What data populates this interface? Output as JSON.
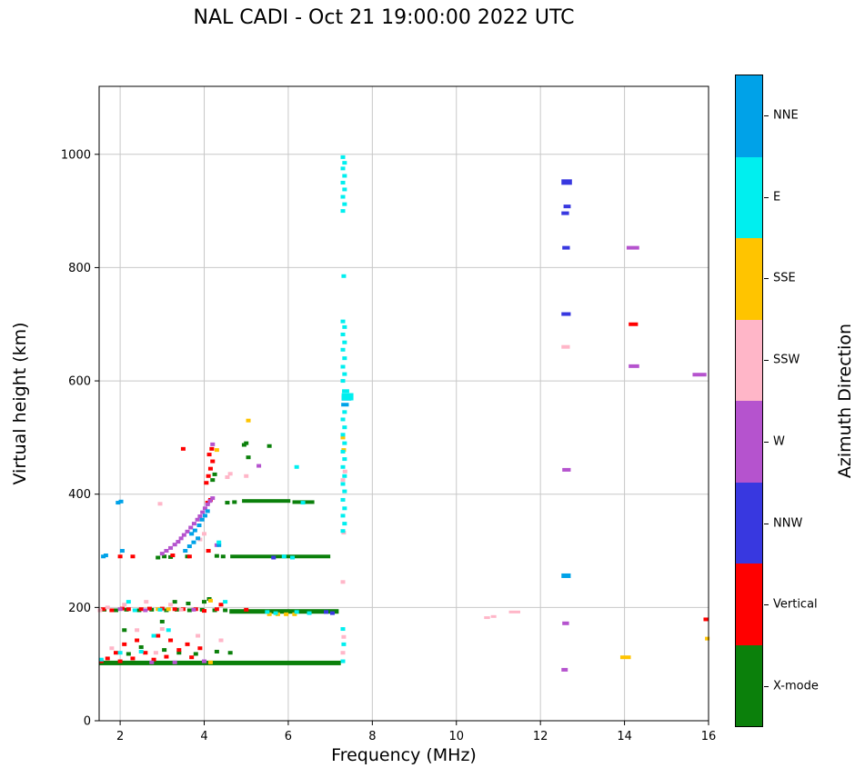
{
  "chart_data": {
    "type": "scatter",
    "title": "NAL CADI - Oct 21 19:00:00 2022 UTC",
    "xlabel": "Frequency (MHz)",
    "ylabel": "Virtual height (km)",
    "xlim": [
      1.5,
      16
    ],
    "ylim": [
      0,
      1120
    ],
    "xticks": [
      2,
      4,
      6,
      8,
      10,
      12,
      14,
      16
    ],
    "yticks": [
      0,
      200,
      400,
      600,
      800,
      1000
    ],
    "grid": true,
    "grid_color": "#c8c8c8",
    "legend": {
      "title": "Azimuth Direction",
      "position": "right-colorbar",
      "entries": [
        {
          "label": "NNE",
          "color": "#00A2E8"
        },
        {
          "label": "E",
          "color": "#00EFEF"
        },
        {
          "label": "SSE",
          "color": "#FFC400"
        },
        {
          "label": "SSW",
          "color": "#FFB6C8"
        },
        {
          "label": "W",
          "color": "#B553CE"
        },
        {
          "label": "NNW",
          "color": "#3838E0"
        },
        {
          "label": "Vertical",
          "color": "#FF0000"
        },
        {
          "label": "X-mode",
          "color": "#0B800B"
        }
      ]
    },
    "series": [
      {
        "name": "X-mode",
        "color": "#0B800B",
        "segments": [
          [
            1.5,
            7.25,
            102,
            5
          ],
          [
            4.6,
            7.2,
            193,
            5
          ],
          [
            4.62,
            7.0,
            290,
            4
          ],
          [
            4.9,
            6.05,
            388,
            4
          ],
          [
            6.1,
            6.62,
            386,
            4
          ]
        ],
        "points": [
          [
            1.62,
            196
          ],
          [
            1.9,
            195
          ],
          [
            2.15,
            196
          ],
          [
            2.45,
            195
          ],
          [
            2.75,
            196
          ],
          [
            3.1,
            195
          ],
          [
            3.35,
            196
          ],
          [
            3.65,
            195
          ],
          [
            3.95,
            196
          ],
          [
            4.25,
            195
          ],
          [
            4.5,
            195
          ],
          [
            2.9,
            288
          ],
          [
            3.05,
            290
          ],
          [
            3.2,
            289
          ],
          [
            3.6,
            290
          ],
          [
            4.3,
            291
          ],
          [
            4.45,
            290
          ],
          [
            2.1,
            160
          ],
          [
            2.2,
            118
          ],
          [
            2.5,
            130
          ],
          [
            3.0,
            175
          ],
          [
            3.05,
            125
          ],
          [
            3.3,
            210
          ],
          [
            3.4,
            120
          ],
          [
            3.62,
            207
          ],
          [
            3.8,
            118
          ],
          [
            4.0,
            210
          ],
          [
            4.12,
            215
          ],
          [
            4.3,
            122
          ],
          [
            4.62,
            120
          ],
          [
            4.2,
            425
          ],
          [
            4.25,
            435
          ],
          [
            4.95,
            487
          ],
          [
            5.0,
            490
          ],
          [
            5.05,
            465
          ],
          [
            5.55,
            485
          ],
          [
            4.55,
            385
          ],
          [
            4.72,
            386
          ]
        ]
      },
      {
        "name": "Vertical",
        "color": "#FF0000",
        "segments": [
          [
            14.1,
            14.32,
            700,
            4
          ],
          [
            15.88,
            16.0,
            179,
            4
          ]
        ],
        "points": [
          [
            1.55,
            105
          ],
          [
            1.7,
            110
          ],
          [
            1.9,
            120
          ],
          [
            2.0,
            105
          ],
          [
            2.3,
            110
          ],
          [
            2.6,
            120
          ],
          [
            2.8,
            108
          ],
          [
            3.1,
            113
          ],
          [
            3.4,
            125
          ],
          [
            3.6,
            135
          ],
          [
            3.7,
            112
          ],
          [
            3.9,
            128
          ],
          [
            2.1,
            135
          ],
          [
            2.4,
            142
          ],
          [
            2.9,
            150
          ],
          [
            3.2,
            142
          ],
          [
            1.6,
            197
          ],
          [
            1.8,
            195
          ],
          [
            2.05,
            198
          ],
          [
            2.2,
            197
          ],
          [
            2.5,
            197
          ],
          [
            2.7,
            198
          ],
          [
            3.0,
            198
          ],
          [
            3.3,
            197
          ],
          [
            3.5,
            197
          ],
          [
            3.8,
            197
          ],
          [
            4.0,
            194
          ],
          [
            4.3,
            197
          ],
          [
            4.4,
            205
          ],
          [
            5.0,
            196
          ],
          [
            2.0,
            290
          ],
          [
            2.3,
            290
          ],
          [
            3.25,
            292
          ],
          [
            3.65,
            290
          ],
          [
            3.5,
            480
          ],
          [
            4.05,
            420
          ],
          [
            4.1,
            432
          ],
          [
            4.15,
            445
          ],
          [
            4.2,
            458
          ],
          [
            4.12,
            470
          ],
          [
            4.18,
            480
          ],
          [
            4.1,
            300
          ],
          [
            4.08,
            385
          ],
          [
            4.15,
            390
          ]
        ]
      },
      {
        "name": "SSE",
        "color": "#FFC400",
        "segments": [
          [
            13.9,
            14.15,
            112,
            4
          ]
        ],
        "points": [
          [
            2.9,
            197
          ],
          [
            3.15,
            197
          ],
          [
            4.15,
            212
          ],
          [
            5.55,
            188
          ],
          [
            5.75,
            188
          ],
          [
            5.95,
            188
          ],
          [
            6.15,
            188
          ],
          [
            4.3,
            478
          ],
          [
            5.05,
            530
          ],
          [
            7.3,
            500
          ],
          [
            7.32,
            478
          ],
          [
            15.97,
            145
          ],
          [
            4.15,
            103
          ]
        ]
      },
      {
        "name": "SSW",
        "color": "#FFB6C8",
        "segments": [
          [
            10.66,
            10.8,
            182,
            3
          ],
          [
            10.82,
            10.95,
            184,
            3
          ],
          [
            11.25,
            11.52,
            192,
            3
          ],
          [
            12.5,
            12.7,
            660,
            4
          ]
        ],
        "points": [
          [
            1.52,
            195
          ],
          [
            1.7,
            200
          ],
          [
            1.8,
            128
          ],
          [
            2.1,
            205
          ],
          [
            2.4,
            160
          ],
          [
            2.62,
            210
          ],
          [
            2.85,
            120
          ],
          [
            3.0,
            162
          ],
          [
            3.2,
            205
          ],
          [
            3.45,
            196
          ],
          [
            3.85,
            150
          ],
          [
            4.4,
            142
          ],
          [
            2.95,
            383
          ],
          [
            3.9,
            320
          ],
          [
            4.0,
            330
          ],
          [
            4.55,
            430
          ],
          [
            4.62,
            436
          ],
          [
            5.0,
            432
          ],
          [
            7.3,
            120
          ],
          [
            7.32,
            148
          ],
          [
            7.3,
            245
          ],
          [
            7.32,
            332
          ],
          [
            7.3,
            425
          ],
          [
            7.35,
            440
          ]
        ]
      },
      {
        "name": "W",
        "color": "#B553CE",
        "segments": [
          [
            12.5,
            12.65,
            90,
            4
          ],
          [
            12.52,
            12.68,
            172,
            4
          ],
          [
            12.52,
            12.72,
            443,
            4
          ],
          [
            14.1,
            14.35,
            626,
            4
          ],
          [
            14.05,
            14.35,
            835,
            4
          ],
          [
            15.62,
            15.95,
            611,
            4
          ]
        ],
        "points": [
          [
            3.0,
            295
          ],
          [
            3.1,
            300
          ],
          [
            3.2,
            305
          ],
          [
            3.3,
            311
          ],
          [
            3.38,
            316
          ],
          [
            3.45,
            322
          ],
          [
            3.52,
            328
          ],
          [
            3.6,
            334
          ],
          [
            3.68,
            341
          ],
          [
            3.76,
            348
          ],
          [
            3.84,
            355
          ],
          [
            3.9,
            361
          ],
          [
            3.96,
            368
          ],
          [
            4.02,
            375
          ],
          [
            4.08,
            382
          ],
          [
            4.14,
            388
          ],
          [
            4.2,
            393
          ],
          [
            2.0,
            197
          ],
          [
            2.6,
            195
          ],
          [
            3.75,
            196
          ],
          [
            2.75,
            103
          ],
          [
            3.3,
            103
          ],
          [
            4.0,
            105
          ],
          [
            4.2,
            488
          ],
          [
            5.3,
            450
          ],
          [
            4.3,
            310
          ]
        ]
      },
      {
        "name": "NNW",
        "color": "#3838E0",
        "segments": [
          [
            12.5,
            12.72,
            718,
            4
          ],
          [
            12.52,
            12.7,
            835,
            4
          ],
          [
            12.5,
            12.68,
            896,
            4
          ],
          [
            12.55,
            12.72,
            908,
            4
          ],
          [
            12.5,
            12.75,
            951,
            6
          ]
        ],
        "points": [
          [
            6.9,
            192
          ],
          [
            7.05,
            190
          ],
          [
            5.65,
            288
          ]
        ]
      },
      {
        "name": "NNE",
        "color": "#00A2E8",
        "segments": [
          [
            7.27,
            7.5,
            570,
            6
          ],
          [
            7.26,
            7.44,
            558,
            4
          ],
          [
            12.5,
            12.72,
            256,
            5
          ]
        ],
        "points": [
          [
            1.6,
            290
          ],
          [
            1.66,
            292
          ],
          [
            1.95,
            385
          ],
          [
            2.02,
            387
          ],
          [
            2.05,
            300
          ],
          [
            3.55,
            300
          ],
          [
            3.65,
            308
          ],
          [
            3.7,
            330
          ],
          [
            3.75,
            315
          ],
          [
            3.78,
            336
          ],
          [
            3.85,
            322
          ],
          [
            3.88,
            345
          ],
          [
            3.95,
            355
          ],
          [
            4.02,
            362
          ],
          [
            4.08,
            370
          ],
          [
            4.35,
            310
          ]
        ]
      },
      {
        "name": "E",
        "color": "#00EFEF",
        "segments": [
          [
            7.27,
            7.55,
            572,
            8
          ],
          [
            7.28,
            7.45,
            582,
            4
          ]
        ],
        "points": [
          [
            7.3,
            335
          ],
          [
            7.34,
            348
          ],
          [
            7.3,
            362
          ],
          [
            7.34,
            375
          ],
          [
            7.3,
            390
          ],
          [
            7.34,
            405
          ],
          [
            7.3,
            418
          ],
          [
            7.34,
            432
          ],
          [
            7.3,
            448
          ],
          [
            7.34,
            462
          ],
          [
            7.3,
            475
          ],
          [
            7.34,
            490
          ],
          [
            7.3,
            505
          ],
          [
            7.34,
            518
          ],
          [
            7.3,
            532
          ],
          [
            7.34,
            545
          ],
          [
            7.3,
            600
          ],
          [
            7.34,
            612
          ],
          [
            7.3,
            625
          ],
          [
            7.34,
            640
          ],
          [
            7.3,
            655
          ],
          [
            7.34,
            668
          ],
          [
            7.3,
            682
          ],
          [
            7.34,
            695
          ],
          [
            7.3,
            705
          ],
          [
            7.32,
            785
          ],
          [
            7.3,
            900
          ],
          [
            7.34,
            912
          ],
          [
            7.3,
            925
          ],
          [
            7.34,
            938
          ],
          [
            7.3,
            950
          ],
          [
            7.34,
            962
          ],
          [
            7.3,
            975
          ],
          [
            7.34,
            985
          ],
          [
            7.3,
            995
          ],
          [
            7.3,
            105
          ],
          [
            7.32,
            135
          ],
          [
            7.3,
            162
          ],
          [
            1.55,
            108
          ],
          [
            2.0,
            120
          ],
          [
            2.2,
            210
          ],
          [
            2.35,
            195
          ],
          [
            2.5,
            122
          ],
          [
            2.8,
            150
          ],
          [
            2.95,
            196
          ],
          [
            3.15,
            160
          ],
          [
            4.35,
            315
          ],
          [
            4.5,
            210
          ],
          [
            5.5,
            192
          ],
          [
            5.7,
            190
          ],
          [
            6.2,
            192
          ],
          [
            6.5,
            190
          ],
          [
            5.9,
            290
          ],
          [
            6.1,
            288
          ],
          [
            6.35,
            385
          ],
          [
            6.2,
            448
          ]
        ]
      }
    ]
  }
}
